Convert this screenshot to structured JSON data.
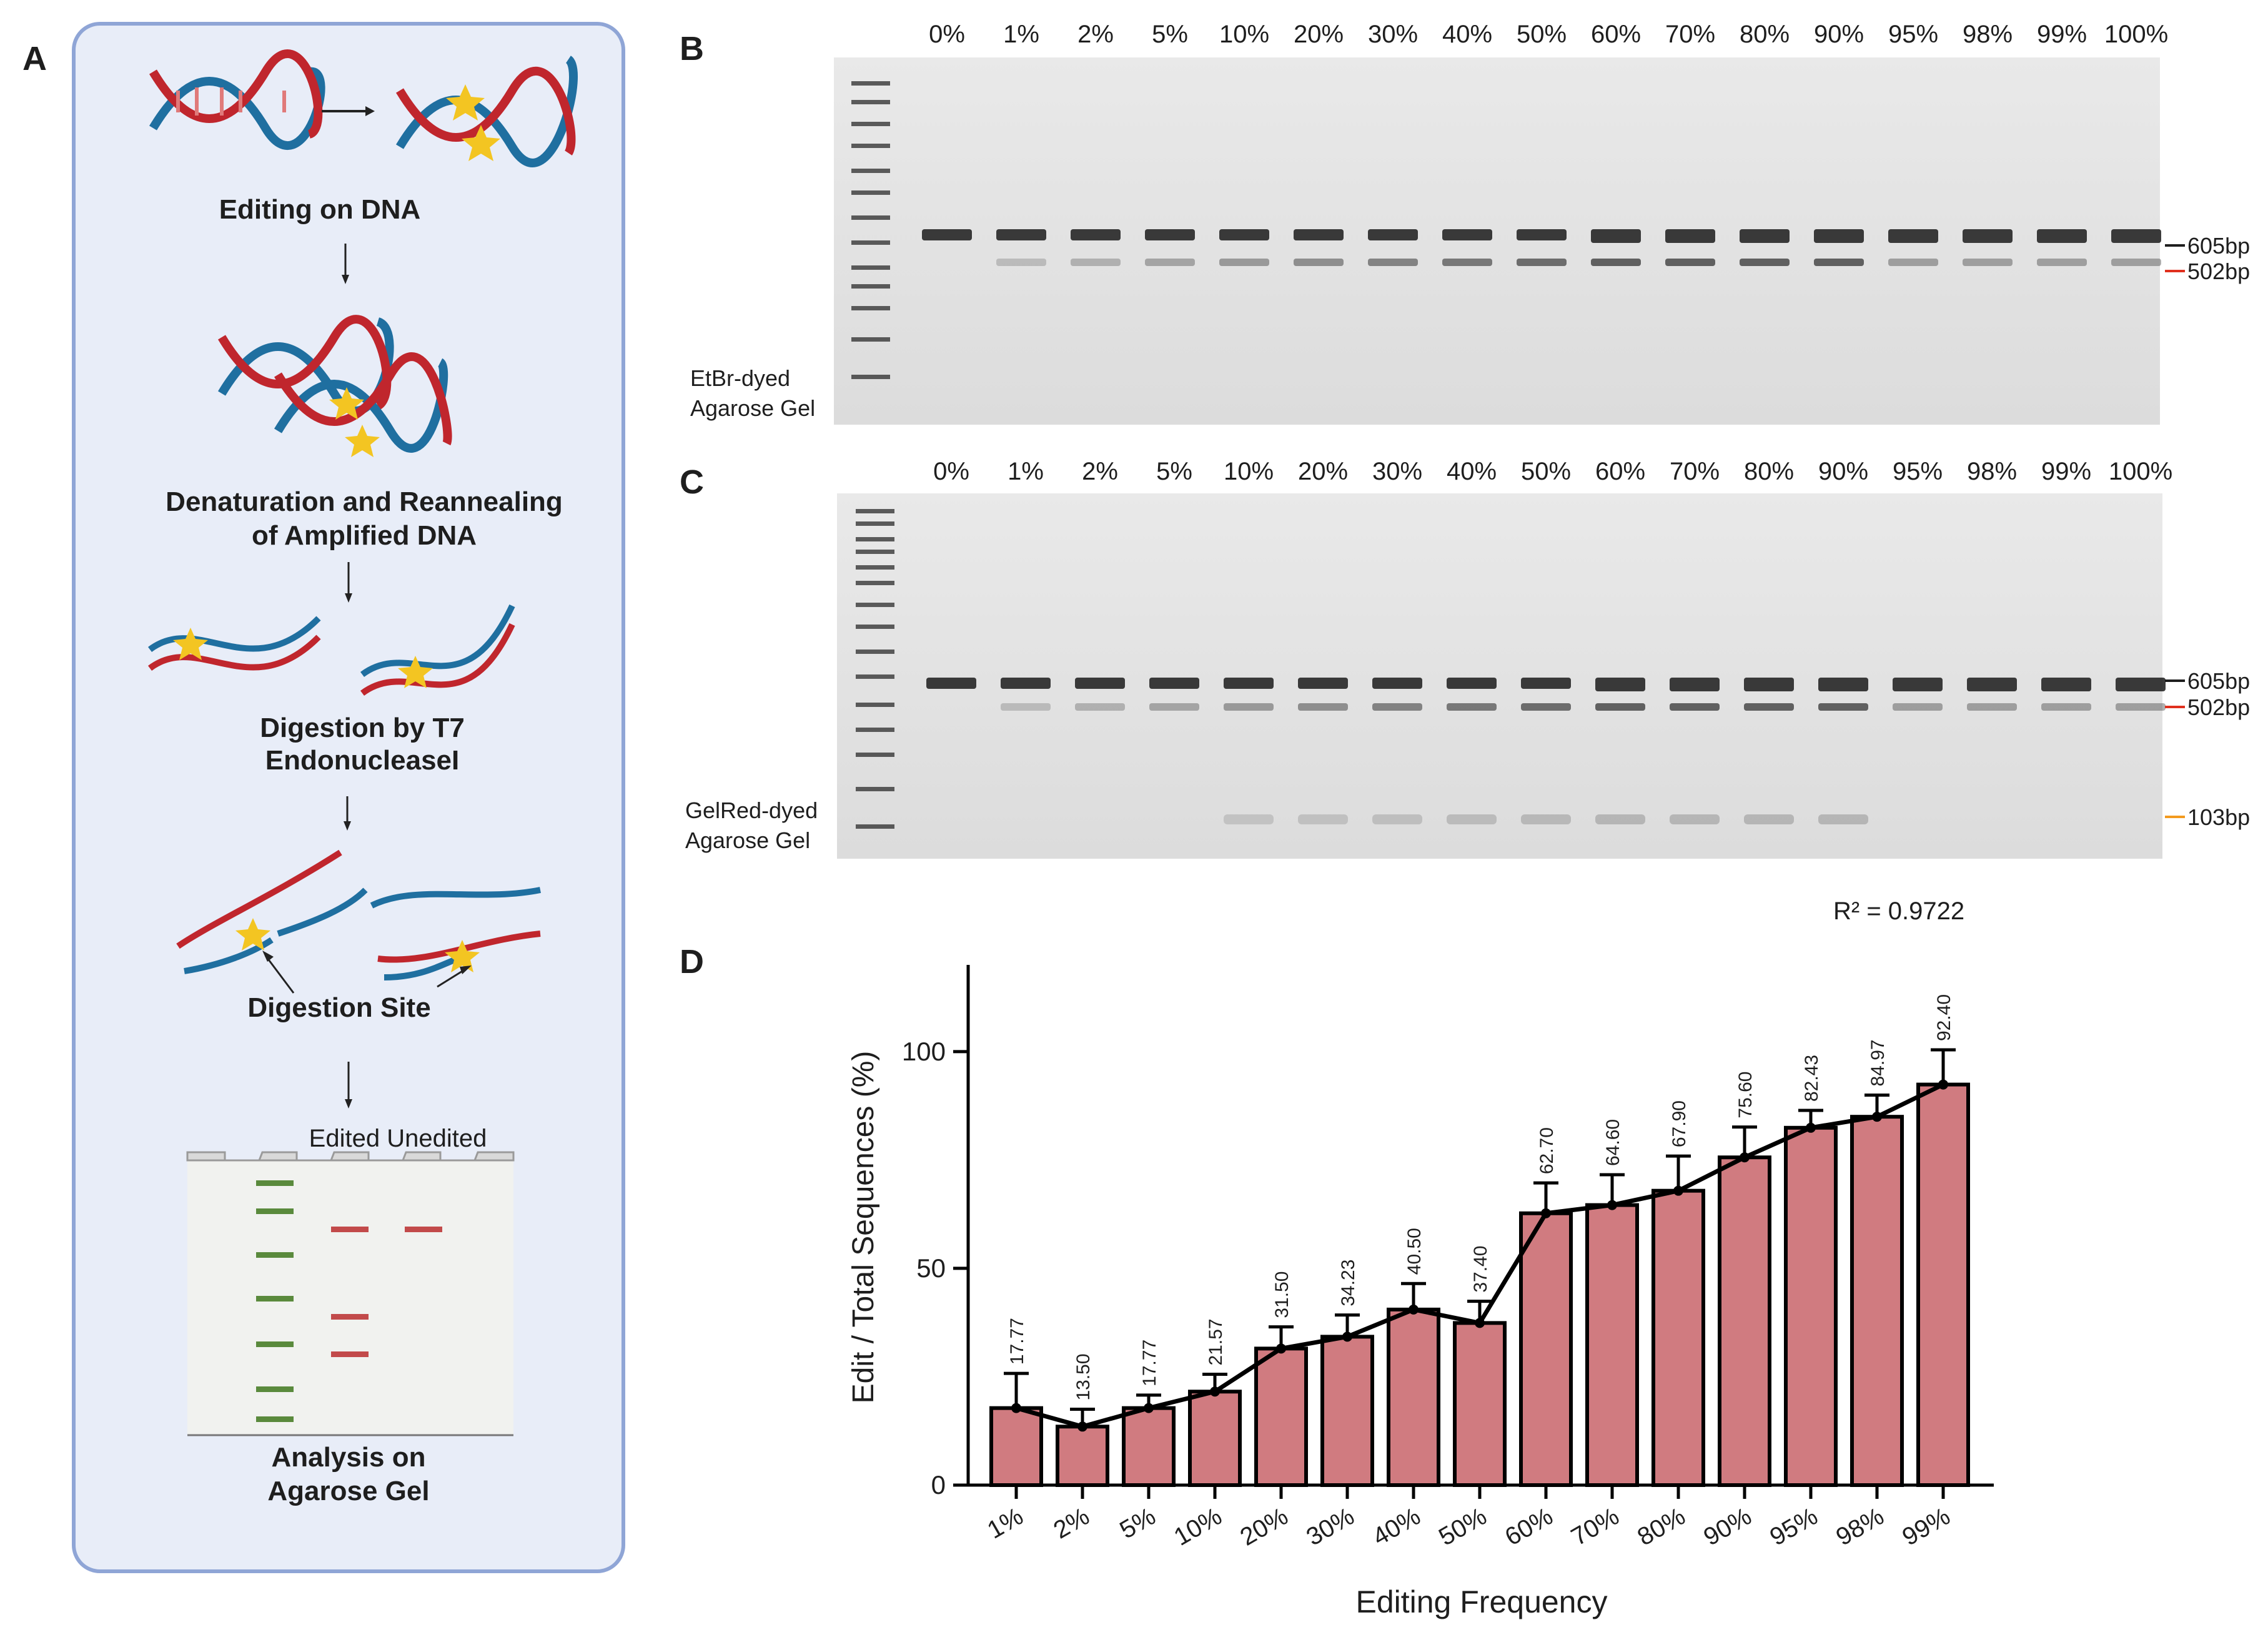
{
  "panel_letters": {
    "a": "A",
    "b": "B",
    "c": "C",
    "d": "D"
  },
  "schematic": {
    "step1": "Editing on DNA",
    "step2_line1": "Denaturation and Reannealing",
    "step2_line2": "of Amplified DNA",
    "step3_line1": "Digestion by T7",
    "step3_line2": "EndonucleaseI",
    "step4": "Digestion Site",
    "gel_header": "Edited Unedited",
    "step5_line1": "Analysis on",
    "step5_line2": "Agarose Gel"
  },
  "gel_b": {
    "lanes": [
      "0%",
      "1%",
      "2%",
      "5%",
      "10%",
      "20%",
      "30%",
      "40%",
      "50%",
      "60%",
      "70%",
      "80%",
      "90%",
      "95%",
      "98%",
      "99%",
      "100%"
    ],
    "stain_line1": "EtBr-dyed",
    "stain_line2": "Agarose Gel",
    "markers": [
      {
        "label": "605bp",
        "color": "#1e1e1e"
      },
      {
        "label": "502bp",
        "color": "#e0301e"
      }
    ]
  },
  "gel_c": {
    "lanes": [
      "0%",
      "1%",
      "2%",
      "5%",
      "10%",
      "20%",
      "30%",
      "40%",
      "50%",
      "60%",
      "70%",
      "80%",
      "90%",
      "95%",
      "98%",
      "99%",
      "100%"
    ],
    "stain_line1": "GelRed-dyed",
    "stain_line2": "Agarose Gel",
    "markers": [
      {
        "label": "605bp",
        "color": "#1e1e1e"
      },
      {
        "label": "502bp",
        "color": "#e0301e"
      },
      {
        "label": "103bp",
        "color": "#f39a1e"
      }
    ]
  },
  "chart_data": {
    "type": "bar",
    "title": "",
    "annotation": "R² = 0.9722",
    "categories": [
      "1%",
      "2%",
      "5%",
      "10%",
      "20%",
      "30%",
      "40%",
      "50%",
      "60%",
      "70%",
      "80%",
      "90%",
      "95%",
      "98%",
      "99%"
    ],
    "values": [
      17.77,
      13.5,
      17.77,
      21.57,
      31.5,
      34.23,
      40.5,
      37.4,
      62.7,
      64.6,
      67.9,
      75.6,
      82.43,
      84.97,
      92.4
    ],
    "value_labels": [
      "17.77",
      "13.50",
      "17.77",
      "21.57",
      "31.50",
      "34.23",
      "40.50",
      "37.40",
      "62.70",
      "64.60",
      "67.90",
      "75.60",
      "82.43",
      "84.97",
      "92.40"
    ],
    "error_plus": [
      8,
      4,
      3,
      4,
      5,
      5,
      6,
      5,
      7,
      7,
      8,
      7,
      4,
      5,
      8
    ],
    "line_overlay": true,
    "xlabel": "Editing Frequency",
    "ylabel": "Edit / Total Sequences (%)",
    "ylim": [
      0,
      120
    ],
    "yticks": [
      0,
      50,
      100
    ],
    "bar_color": "#d07b80",
    "grid": false
  }
}
